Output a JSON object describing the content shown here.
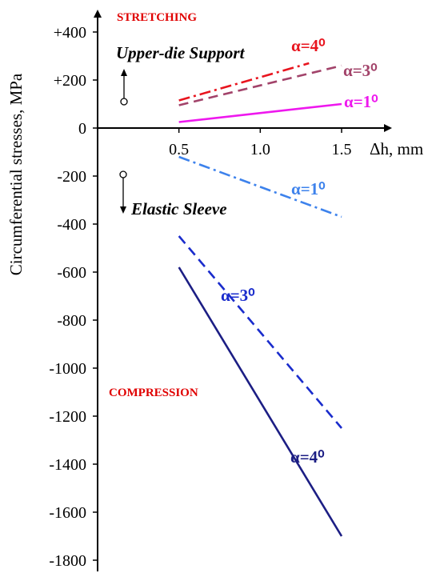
{
  "chart_data": {
    "type": "line",
    "ylabel": "Circumferential stresses, MPa",
    "xlabel": "Δh, mm",
    "xlim": [
      0,
      1.5
    ],
    "ylim": [
      -1800,
      400
    ],
    "x_ticks": [
      {
        "value": 0.5,
        "label": "0.5"
      },
      {
        "value": 1.0,
        "label": "1.0"
      },
      {
        "value": 1.5,
        "label": "1.5"
      }
    ],
    "y_ticks": [
      {
        "value": 400,
        "label": "+400"
      },
      {
        "value": 200,
        "label": "+200"
      },
      {
        "value": 0,
        "label": "0"
      },
      {
        "value": -200,
        "label": "-200"
      },
      {
        "value": -400,
        "label": "-400"
      },
      {
        "value": -600,
        "label": "-600"
      },
      {
        "value": -800,
        "label": "-800"
      },
      {
        "value": -1000,
        "label": "-1000"
      },
      {
        "value": -1200,
        "label": "-1200"
      },
      {
        "value": -1400,
        "label": "-1400"
      },
      {
        "value": -1600,
        "label": "-1600"
      },
      {
        "value": -1800,
        "label": "-1800"
      }
    ],
    "annotations": {
      "stretching": "STRETCHING",
      "compression": "COMPRESSION",
      "upper_support": "Upper-die Support",
      "elastic_sleeve": "Elastic Sleeve"
    },
    "series": [
      {
        "name": "α=4⁰",
        "group": "upper-die-support",
        "color": "#e8141e",
        "dash": "dashdot",
        "x": [
          0.5,
          1.3
        ],
        "y": [
          115,
          270
        ]
      },
      {
        "name": "α=3⁰",
        "group": "upper-die-support",
        "color": "#a2436a",
        "dash": "dashed",
        "x": [
          0.5,
          1.5
        ],
        "y": [
          95,
          260
        ]
      },
      {
        "name": "α=1⁰",
        "group": "upper-die-support",
        "color": "#ee18ee",
        "dash": "solid",
        "x": [
          0.5,
          1.5
        ],
        "y": [
          25,
          100
        ]
      },
      {
        "name": "α=1⁰",
        "group": "elastic-sleeve",
        "color": "#3d82ec",
        "dash": "dashdot",
        "x": [
          0.5,
          1.5
        ],
        "y": [
          -120,
          -370
        ]
      },
      {
        "name": "α=3⁰",
        "group": "elastic-sleeve",
        "color": "#1a2ccc",
        "dash": "dashed",
        "x": [
          0.5,
          1.5
        ],
        "y": [
          -450,
          -1250
        ]
      },
      {
        "name": "α=4⁰",
        "group": "elastic-sleeve",
        "color": "#1c1e84",
        "dash": "solid",
        "x": [
          0.5,
          1.5
        ],
        "y": [
          -580,
          -1700
        ]
      }
    ]
  }
}
